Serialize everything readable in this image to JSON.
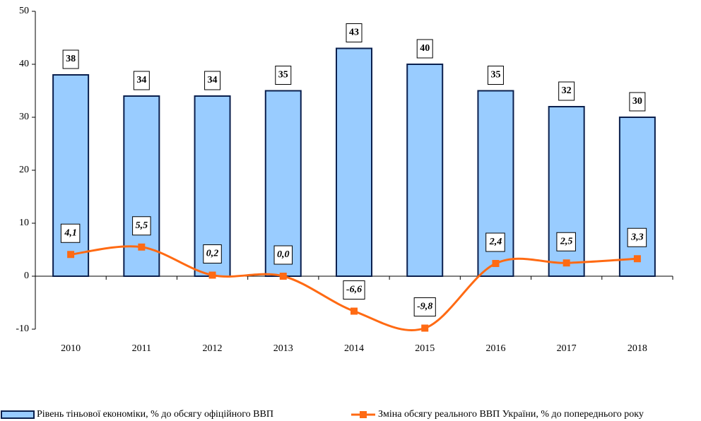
{
  "chart_data": {
    "type": "bar",
    "categories": [
      "2010",
      "2011",
      "2012",
      "2013",
      "2014",
      "2015",
      "2016",
      "2017",
      "2018"
    ],
    "series": [
      {
        "name": "Рівень тіньової економіки, % до обсягу офіційного ВВП",
        "type": "bar",
        "color": "#99ccff",
        "values": [
          38,
          34,
          34,
          35,
          43,
          40,
          35,
          32,
          30
        ]
      },
      {
        "name": "Зміна обсягу реального ВВП України, % до попереднього року",
        "type": "line",
        "color": "#ff6a13",
        "values": [
          4.1,
          5.5,
          0.2,
          0.0,
          -6.6,
          -9.8,
          2.4,
          2.5,
          3.3
        ],
        "value_labels": [
          "4,1",
          "5,5",
          "0,2",
          "0,0",
          "-6,6",
          "-9,8",
          "2,4",
          "2,5",
          "3,3"
        ]
      }
    ],
    "ylim": [
      -10,
      50
    ],
    "yticks": [
      -10,
      0,
      10,
      20,
      30,
      40,
      50
    ]
  }
}
